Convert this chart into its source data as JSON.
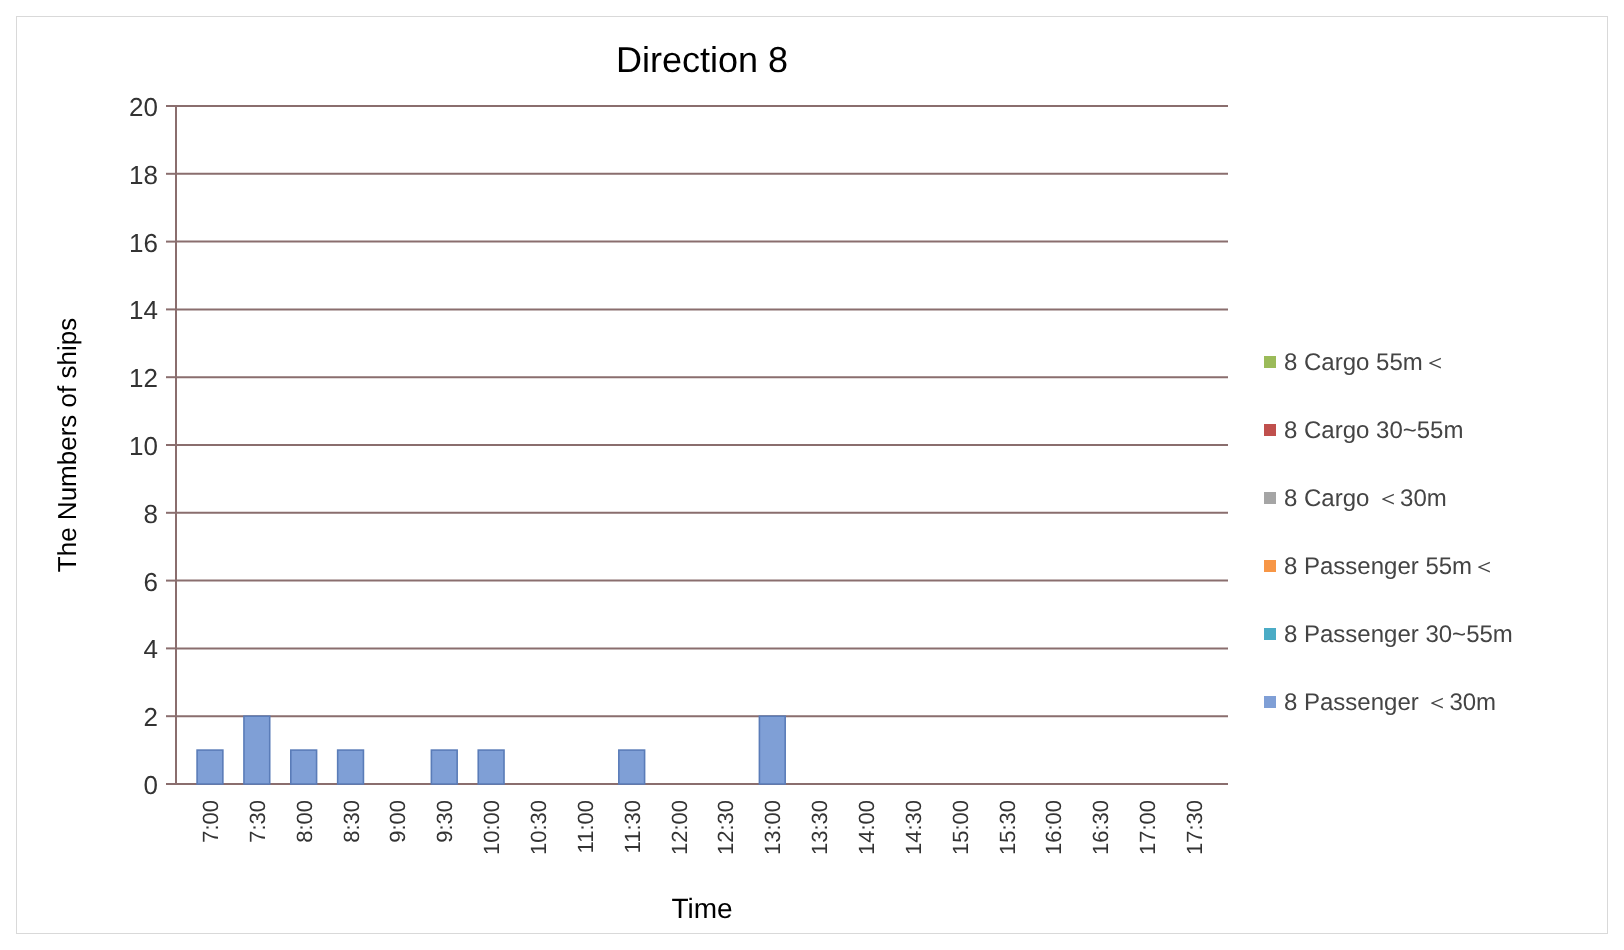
{
  "chart_data": {
    "type": "bar",
    "title": "Direction 8",
    "xlabel": "Time",
    "ylabel": "The Numbers of ships",
    "stacked": true,
    "grid": "y",
    "legend": "right",
    "categories": [
      "7:00",
      "7:30",
      "8:00",
      "8:30",
      "9:00",
      "9:30",
      "10:00",
      "10:30",
      "11:00",
      "11:30",
      "12:00",
      "12:30",
      "13:00",
      "13:30",
      "14:00",
      "14:30",
      "15:00",
      "15:30",
      "16:00",
      "16:30",
      "17:00",
      "17:30"
    ],
    "ylim": [
      0,
      20
    ],
    "yticks": [
      0,
      2,
      4,
      6,
      8,
      10,
      12,
      14,
      16,
      18,
      20
    ],
    "series": [
      {
        "name": "8 Passenger ＜30m",
        "color": "#7f9fd6",
        "values": [
          1,
          2,
          1,
          1,
          0,
          1,
          1,
          0,
          0,
          1,
          0,
          0,
          2,
          0,
          0,
          0,
          0,
          0,
          0,
          0,
          0,
          0
        ]
      },
      {
        "name": "8 Passenger 30~55m",
        "color": "#4bacc6",
        "values": [
          0,
          0,
          0,
          0,
          0,
          0,
          0,
          0,
          0,
          0,
          0,
          0,
          0,
          0,
          0,
          0,
          0,
          0,
          0,
          0,
          0,
          0
        ]
      },
      {
        "name": "8 Passenger 55m＜",
        "color": "#f79646",
        "values": [
          0,
          0,
          0,
          0,
          0,
          0,
          0,
          0,
          0,
          0,
          0,
          0,
          0,
          0,
          0,
          0,
          0,
          0,
          0,
          0,
          0,
          0
        ]
      },
      {
        "name": "8 Cargo ＜30m",
        "color": "#a5a5a5",
        "values": [
          0,
          0,
          0,
          0,
          0,
          0,
          0,
          0,
          0,
          0,
          0,
          0,
          0,
          0,
          0,
          0,
          0,
          0,
          0,
          0,
          0,
          0
        ]
      },
      {
        "name": "8 Cargo 30~55m",
        "color": "#c0504d",
        "values": [
          0,
          0,
          0,
          0,
          0,
          0,
          0,
          0,
          0,
          0,
          0,
          0,
          0,
          0,
          0,
          0,
          0,
          0,
          0,
          0,
          0,
          0
        ]
      },
      {
        "name": "8 Cargo 55m＜",
        "color": "#9bbb59",
        "values": [
          0,
          0,
          0,
          0,
          0,
          0,
          0,
          0,
          0,
          0,
          0,
          0,
          0,
          0,
          0,
          0,
          0,
          0,
          0,
          0,
          0,
          0
        ]
      }
    ]
  }
}
